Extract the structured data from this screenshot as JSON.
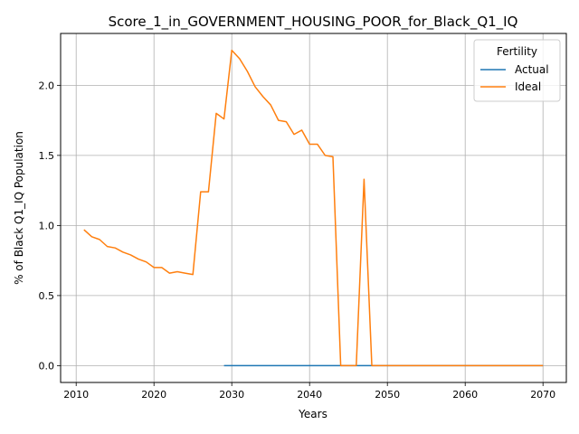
{
  "chart_data": {
    "type": "line",
    "title": "Score_1_in_GOVERNMENT_HOUSING_POOR_for_Black_Q1_IQ",
    "xlabel": "Years",
    "ylabel": "% of Black Q1_IQ Population",
    "xlim": [
      2008,
      2073
    ],
    "ylim": [
      -0.12,
      2.37
    ],
    "xticks": [
      2010,
      2020,
      2030,
      2040,
      2050,
      2060,
      2070
    ],
    "xtick_labels": [
      "2010",
      "2020",
      "2030",
      "2040",
      "2050",
      "2060",
      "2070"
    ],
    "yticks": [
      0.0,
      0.5,
      1.0,
      1.5,
      2.0
    ],
    "ytick_labels": [
      "0.0",
      "0.5",
      "1.0",
      "1.5",
      "2.0"
    ],
    "grid": true,
    "legend": {
      "title": "Fertility",
      "placement": "top-right"
    },
    "series": [
      {
        "name": "Actual",
        "color": "#1f77b4",
        "x": [
          2029,
          2070
        ],
        "y": [
          0.0,
          0.0
        ]
      },
      {
        "name": "Ideal",
        "color": "#ff7f0e",
        "x": [
          2011,
          2012,
          2013,
          2014,
          2015,
          2016,
          2017,
          2018,
          2019,
          2020,
          2021,
          2022,
          2023,
          2024,
          2025,
          2026,
          2027,
          2028,
          2029,
          2030,
          2031,
          2032,
          2033,
          2034,
          2035,
          2036,
          2037,
          2038,
          2039,
          2040,
          2041,
          2042,
          2043,
          2044,
          2045,
          2046,
          2047,
          2048,
          2049,
          2050,
          2055,
          2060,
          2065,
          2070
        ],
        "y": [
          0.97,
          0.92,
          0.9,
          0.85,
          0.84,
          0.81,
          0.79,
          0.76,
          0.74,
          0.7,
          0.7,
          0.66,
          0.67,
          0.66,
          0.65,
          1.24,
          1.24,
          1.8,
          1.76,
          2.25,
          2.19,
          2.1,
          1.99,
          1.92,
          1.86,
          1.75,
          1.74,
          1.65,
          1.68,
          1.58,
          1.58,
          1.5,
          1.49,
          0.0,
          0.0,
          0.0,
          1.33,
          0.0,
          0.0,
          0.0,
          0.0,
          0.0,
          0.0,
          0.0
        ]
      }
    ]
  }
}
